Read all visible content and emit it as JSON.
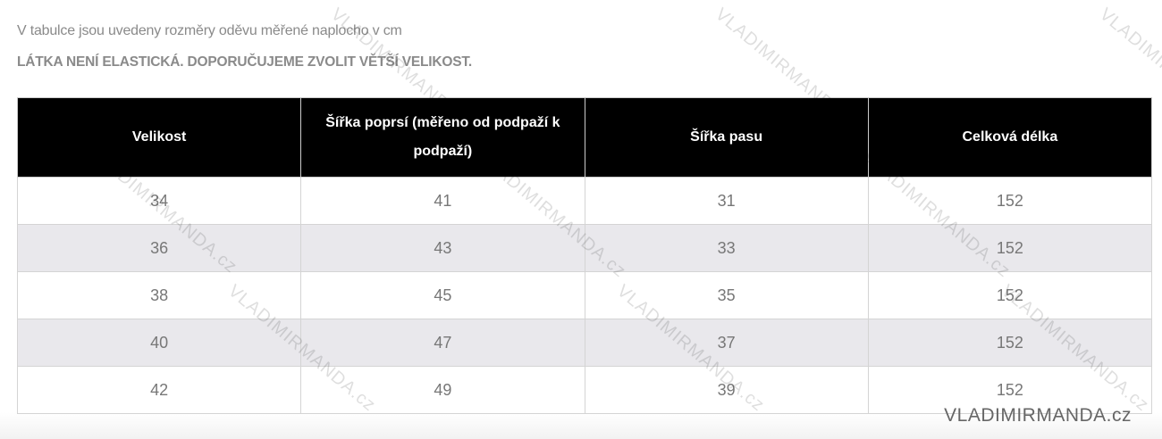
{
  "intro_text": "V tabulce jsou uvedeny rozměry oděvu měřené naplocho v cm",
  "warning_text": "LÁTKA NENÍ ELASTICKÁ. DOPORUČUJEME ZVOLIT VĚTŠÍ VELIKOST.",
  "table": {
    "headers": [
      "Velikost",
      "Šířka poprsí (měřeno od podpaží k podpaží)",
      "Šířka pasu",
      "Celková délka"
    ],
    "rows": [
      [
        "34",
        "41",
        "31",
        "152"
      ],
      [
        "36",
        "43",
        "33",
        "152"
      ],
      [
        "38",
        "45",
        "35",
        "152"
      ],
      [
        "40",
        "47",
        "37",
        "152"
      ],
      [
        "42",
        "49",
        "39",
        "152"
      ]
    ]
  },
  "watermark": "VLADIMIRMANDA.cz",
  "logo_text": "VLADIMIRMANDA.cz"
}
